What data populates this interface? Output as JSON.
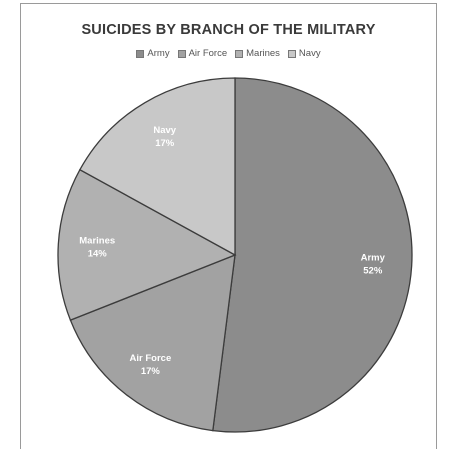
{
  "chart_data": {
    "type": "pie",
    "title": "SUICIDES BY BRANCH OF THE MILITARY",
    "legend_position": "top",
    "categories": [
      "Army",
      "Air Force",
      "Marines",
      "Navy"
    ],
    "values": [
      52,
      17,
      14,
      17
    ],
    "value_labels": [
      "52%",
      "17%",
      "14%",
      "17%"
    ],
    "colors": [
      "#8c8c8c",
      "#a2a2a2",
      "#b1b1b1",
      "#c8c8c8"
    ]
  }
}
